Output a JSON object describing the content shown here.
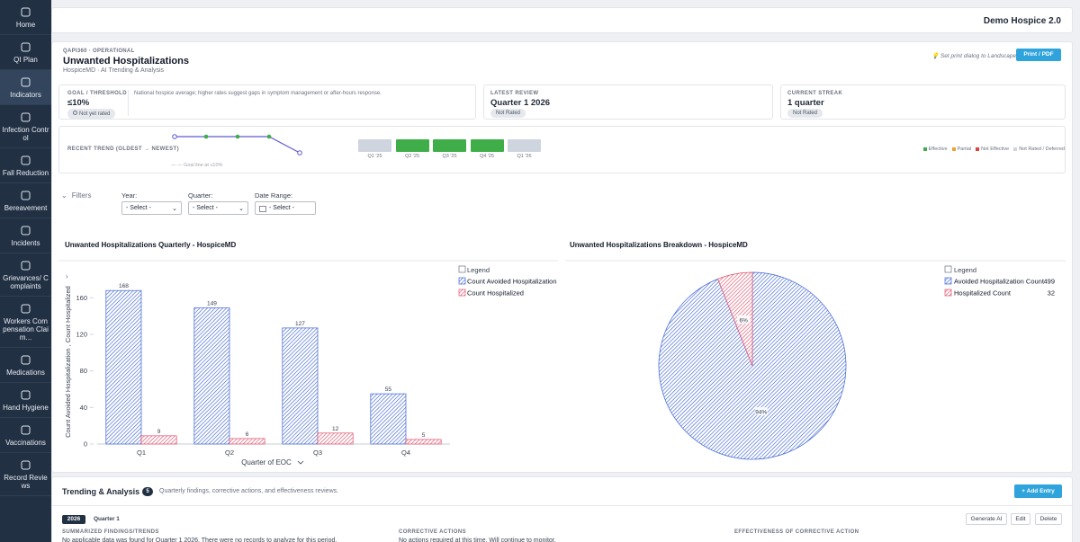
{
  "sidebar": {
    "items": [
      "Home",
      "QI Plan",
      "Indicators",
      "Infection Control",
      "Fall Reduction",
      "Bereavement",
      "Incidents",
      "Grievances/ Complaints",
      "Workers Compensation Claim...",
      "Medications",
      "Hand Hygiene",
      "Vaccinations",
      "Record Reviews"
    ],
    "active_index": 2
  },
  "topbar": {
    "title": "Demo Hospice 2.0"
  },
  "header": {
    "eyebrow": "QAPI360 · OPERATIONAL",
    "title": "Unwanted Hospitalizations",
    "subtitle": "HospiceMD · AI Trending & Analysis",
    "print_hint": "Set print dialog to Landscape",
    "print_button": "Print / PDF"
  },
  "kpis": {
    "goal": {
      "label": "GOAL / THRESHOLD",
      "value": "≤10%",
      "badge": "Not yet rated",
      "description": "National hospice average; higher rates suggest gaps in symptom management or after-hours response."
    },
    "latest_review": {
      "label": "LATEST REVIEW",
      "value": "Quarter 1 2026",
      "badge": "Not Rated"
    },
    "current_streak": {
      "label": "CURRENT STREAK",
      "value": "1 quarter",
      "badge": "Not Rated"
    }
  },
  "trend": {
    "label": "RECENT TREND (OLDEST → NEWEST)",
    "goal_note": "— — Goal line at ≤10%",
    "quarters": [
      {
        "label": "Q1 '25",
        "color": "#cfd5de"
      },
      {
        "label": "Q2 '25",
        "color": "#3fae49"
      },
      {
        "label": "Q3 '25",
        "color": "#3fae49"
      },
      {
        "label": "Q4 '25",
        "color": "#3fae49"
      },
      {
        "label": "Q1 '26",
        "color": "#cfd5de"
      }
    ],
    "legend": [
      {
        "label": "Effective",
        "color": "#3fae49"
      },
      {
        "label": "Partial",
        "color": "#f0a030"
      },
      {
        "label": "Not Effective",
        "color": "#e0403a"
      },
      {
        "label": "Not Rated / Deferred",
        "color": "#cfd5de"
      }
    ]
  },
  "filters": {
    "toggle": "Filters",
    "fields": [
      {
        "label": "Year:",
        "placeholder": "- Select -"
      },
      {
        "label": "Quarter:",
        "placeholder": "- Select -"
      },
      {
        "label": "Date Range:",
        "placeholder": "- Select -"
      }
    ]
  },
  "chart_data": [
    {
      "type": "bar",
      "title": "Unwanted Hospitalizations Quarterly - HospiceMD",
      "x_label": "Quarter of EOC",
      "y_label": "Count Avoided Hospitalization , Count Hospitalized",
      "categories": [
        "Q1",
        "Q2",
        "Q3",
        "Q4"
      ],
      "series": [
        {
          "name": "Count Avoided Hospitalization",
          "color": "#3f66d6",
          "values": [
            168,
            149,
            127,
            55
          ]
        },
        {
          "name": "Count Hospitalized",
          "color": "#e0506c",
          "values": [
            9,
            6,
            12,
            5
          ]
        }
      ],
      "ylim": [
        0,
        180
      ],
      "yticks": [
        0,
        40,
        80,
        120,
        160
      ],
      "legend_title": "Legend",
      "grid": false
    },
    {
      "type": "pie",
      "title": "Unwanted Hospitalizations Breakdown - HospiceMD",
      "categories": [
        "Avoided Hospitalization Count",
        "Hospitalized Count"
      ],
      "values": [
        499,
        32
      ],
      "colors": [
        "#3f66d6",
        "#e0506c"
      ],
      "slice_labels": [
        "94%",
        "6%"
      ],
      "legend_title": "Legend"
    }
  ],
  "trending_analysis": {
    "title": "Trending & Analysis",
    "count": "5",
    "description": "Quarterly findings, corrective actions, and effectiveness reviews.",
    "add_button": "+ Add Entry",
    "entry": {
      "year": "2026",
      "quarter": "Quarter 1",
      "actions": [
        "Generate AI",
        "Edit",
        "Delete"
      ],
      "columns": [
        {
          "label": "SUMMARIZED FINDINGS/TRENDS",
          "text": "No applicable data was found for Quarter 1 2026. There were no records to analyze for this period."
        },
        {
          "label": "CORRECTIVE ACTIONS",
          "text": "No actions required at this time. Will continue to monitor."
        },
        {
          "label": "EFFECTIVENESS OF CORRECTIVE ACTION",
          "text": ""
        }
      ]
    }
  }
}
